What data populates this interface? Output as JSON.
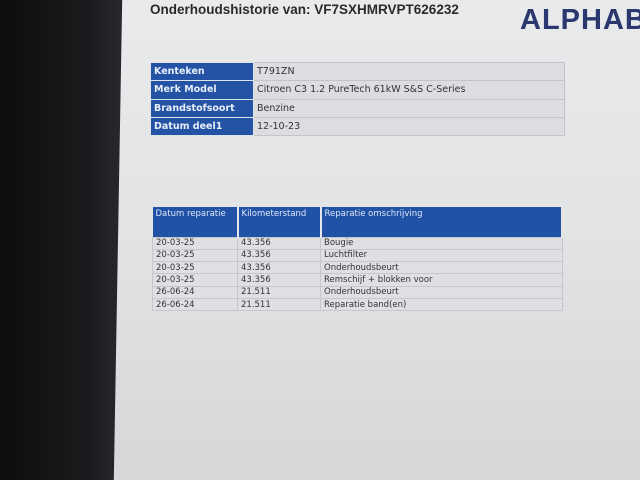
{
  "title": "Onderhoudshistorie van: VF7SXHMRVPT626232",
  "logo": "ALPHAB",
  "vehicle": [
    {
      "label": "Kenteken",
      "value": "T791ZN"
    },
    {
      "label": "Merk Model",
      "value": "Citroen C3 1.2 PureTech 61kW S&S C-Series"
    },
    {
      "label": "Brandstofsoort",
      "value": "Benzine"
    },
    {
      "label": "Datum deel1",
      "value": "12-10-23"
    }
  ],
  "history": {
    "headers": [
      "Datum reparatie",
      "Kilometerstand",
      "Reparatie omschrijving"
    ],
    "rows": [
      [
        "20-03-25",
        "43.356",
        "Bougie"
      ],
      [
        "20-03-25",
        "43.356",
        "Luchtfilter"
      ],
      [
        "20-03-25",
        "43.356",
        "Onderhoudsbeurt"
      ],
      [
        "20-03-25",
        "43.356",
        "Remschijf + blokken voor"
      ],
      [
        "26-06-24",
        "21.511",
        "Onderhoudsbeurt"
      ],
      [
        "26-06-24",
        "21.511",
        "Reparatie band(en)"
      ]
    ]
  }
}
